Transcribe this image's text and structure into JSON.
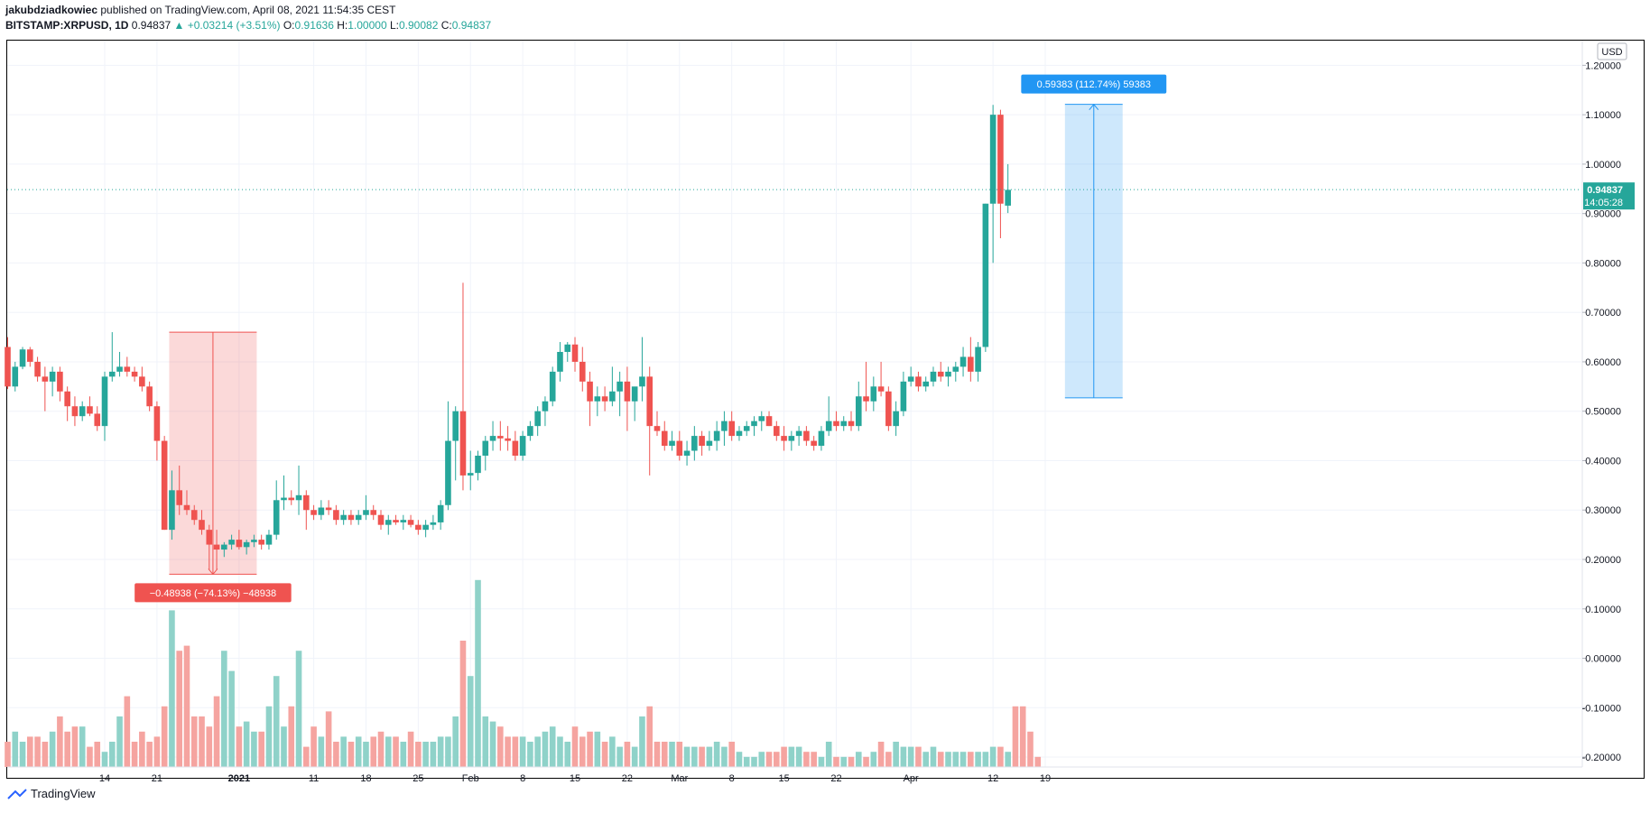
{
  "header": {
    "author": "jakubdziadkowiec",
    "published_text": "published on TradingView.com, April 08, 2021 11:54:35 CEST",
    "symbol": "BITSTAMP:XRPUSD, 1D",
    "last": "0.94837",
    "change": "▲ +0.03214 (+3.51%)",
    "o_label": "O:",
    "o": "0.91636",
    "h_label": "H:",
    "h": "1.00000",
    "l_label": "L:",
    "l": "0.90082",
    "c_label": "C:",
    "c": "0.94837"
  },
  "footer": {
    "brand": "TradingView"
  },
  "price_axis": {
    "currency": "USD",
    "ticks": [
      "1.20000",
      "1.10000",
      "1.00000",
      "0.90000",
      "0.80000",
      "0.70000",
      "0.60000",
      "0.50000",
      "0.40000",
      "0.30000",
      "0.20000",
      "0.10000",
      "0.00000",
      "-0.10000",
      "-0.20000"
    ],
    "last_price_label": "0.94837",
    "countdown_label": "14:05:28"
  },
  "chart_data": {
    "type": "candlestick",
    "symbol": "BITSTAMP:XRPUSD",
    "interval": "1D",
    "ylim": [
      -0.22,
      1.25
    ],
    "x_tick_labels": [
      {
        "label": "14",
        "index": 13
      },
      {
        "label": "21",
        "index": 20
      },
      {
        "label": "2021",
        "index": 31
      },
      {
        "label": "11",
        "index": 41
      },
      {
        "label": "18",
        "index": 48
      },
      {
        "label": "25",
        "index": 55
      },
      {
        "label": "Feb",
        "index": 62
      },
      {
        "label": "8",
        "index": 69
      },
      {
        "label": "15",
        "index": 76
      },
      {
        "label": "22",
        "index": 83
      },
      {
        "label": "Mar",
        "index": 90
      },
      {
        "label": "8",
        "index": 97
      },
      {
        "label": "15",
        "index": 104
      },
      {
        "label": "22",
        "index": 111
      },
      {
        "label": "Apr",
        "index": 121
      },
      {
        "label": "12",
        "index": 132
      },
      {
        "label": "19",
        "index": 139
      }
    ],
    "candles": [
      [
        0.63,
        0.65,
        0.545,
        0.55
      ],
      [
        0.55,
        0.6,
        0.54,
        0.59
      ],
      [
        0.59,
        0.63,
        0.585,
        0.625
      ],
      [
        0.625,
        0.63,
        0.59,
        0.6
      ],
      [
        0.6,
        0.61,
        0.56,
        0.57
      ],
      [
        0.57,
        0.59,
        0.5,
        0.56
      ],
      [
        0.56,
        0.59,
        0.53,
        0.58
      ],
      [
        0.58,
        0.59,
        0.52,
        0.54
      ],
      [
        0.54,
        0.55,
        0.48,
        0.51
      ],
      [
        0.51,
        0.53,
        0.47,
        0.49
      ],
      [
        0.49,
        0.52,
        0.48,
        0.51
      ],
      [
        0.51,
        0.53,
        0.49,
        0.495
      ],
      [
        0.495,
        0.51,
        0.46,
        0.47
      ],
      [
        0.47,
        0.58,
        0.44,
        0.57
      ],
      [
        0.57,
        0.66,
        0.56,
        0.58
      ],
      [
        0.58,
        0.62,
        0.57,
        0.59
      ],
      [
        0.59,
        0.61,
        0.57,
        0.58
      ],
      [
        0.58,
        0.59,
        0.56,
        0.57
      ],
      [
        0.57,
        0.59,
        0.54,
        0.55
      ],
      [
        0.55,
        0.56,
        0.5,
        0.51
      ],
      [
        0.51,
        0.52,
        0.4,
        0.44
      ],
      [
        0.44,
        0.45,
        0.26,
        0.26
      ],
      [
        0.26,
        0.38,
        0.24,
        0.34
      ],
      [
        0.34,
        0.39,
        0.29,
        0.31
      ],
      [
        0.31,
        0.34,
        0.29,
        0.3
      ],
      [
        0.3,
        0.31,
        0.27,
        0.28
      ],
      [
        0.28,
        0.3,
        0.25,
        0.26
      ],
      [
        0.26,
        0.27,
        0.18,
        0.23
      ],
      [
        0.23,
        0.26,
        0.18,
        0.22
      ],
      [
        0.22,
        0.235,
        0.205,
        0.23
      ],
      [
        0.23,
        0.25,
        0.22,
        0.24
      ],
      [
        0.24,
        0.26,
        0.22,
        0.225
      ],
      [
        0.225,
        0.24,
        0.21,
        0.235
      ],
      [
        0.235,
        0.25,
        0.225,
        0.24
      ],
      [
        0.24,
        0.25,
        0.22,
        0.23
      ],
      [
        0.23,
        0.26,
        0.22,
        0.25
      ],
      [
        0.25,
        0.36,
        0.24,
        0.32
      ],
      [
        0.32,
        0.37,
        0.3,
        0.325
      ],
      [
        0.325,
        0.34,
        0.31,
        0.32
      ],
      [
        0.32,
        0.39,
        0.29,
        0.33
      ],
      [
        0.33,
        0.34,
        0.26,
        0.3
      ],
      [
        0.3,
        0.31,
        0.28,
        0.29
      ],
      [
        0.29,
        0.32,
        0.28,
        0.305
      ],
      [
        0.305,
        0.32,
        0.29,
        0.3
      ],
      [
        0.3,
        0.31,
        0.27,
        0.28
      ],
      [
        0.28,
        0.3,
        0.27,
        0.29
      ],
      [
        0.29,
        0.3,
        0.27,
        0.28
      ],
      [
        0.28,
        0.3,
        0.27,
        0.29
      ],
      [
        0.29,
        0.33,
        0.28,
        0.3
      ],
      [
        0.3,
        0.31,
        0.28,
        0.29
      ],
      [
        0.29,
        0.3,
        0.26,
        0.27
      ],
      [
        0.27,
        0.29,
        0.25,
        0.28
      ],
      [
        0.28,
        0.29,
        0.27,
        0.275
      ],
      [
        0.275,
        0.29,
        0.26,
        0.28
      ],
      [
        0.28,
        0.29,
        0.265,
        0.27
      ],
      [
        0.27,
        0.28,
        0.25,
        0.26
      ],
      [
        0.26,
        0.28,
        0.245,
        0.27
      ],
      [
        0.27,
        0.29,
        0.26,
        0.275
      ],
      [
        0.275,
        0.32,
        0.26,
        0.31
      ],
      [
        0.31,
        0.52,
        0.3,
        0.44
      ],
      [
        0.44,
        0.51,
        0.36,
        0.5
      ],
      [
        0.5,
        0.76,
        0.34,
        0.37
      ],
      [
        0.37,
        0.42,
        0.34,
        0.375
      ],
      [
        0.375,
        0.42,
        0.36,
        0.41
      ],
      [
        0.41,
        0.45,
        0.38,
        0.44
      ],
      [
        0.44,
        0.48,
        0.42,
        0.45
      ],
      [
        0.45,
        0.48,
        0.42,
        0.445
      ],
      [
        0.445,
        0.47,
        0.42,
        0.44
      ],
      [
        0.44,
        0.46,
        0.4,
        0.41
      ],
      [
        0.41,
        0.46,
        0.4,
        0.45
      ],
      [
        0.45,
        0.48,
        0.44,
        0.47
      ],
      [
        0.47,
        0.51,
        0.45,
        0.5
      ],
      [
        0.5,
        0.53,
        0.47,
        0.52
      ],
      [
        0.52,
        0.59,
        0.51,
        0.58
      ],
      [
        0.58,
        0.64,
        0.56,
        0.62
      ],
      [
        0.62,
        0.64,
        0.6,
        0.635
      ],
      [
        0.635,
        0.65,
        0.58,
        0.6
      ],
      [
        0.6,
        0.63,
        0.54,
        0.56
      ],
      [
        0.56,
        0.58,
        0.47,
        0.52
      ],
      [
        0.52,
        0.55,
        0.49,
        0.53
      ],
      [
        0.53,
        0.55,
        0.5,
        0.52
      ],
      [
        0.52,
        0.59,
        0.51,
        0.54
      ],
      [
        0.54,
        0.58,
        0.49,
        0.56
      ],
      [
        0.56,
        0.59,
        0.46,
        0.52
      ],
      [
        0.52,
        0.54,
        0.48,
        0.55
      ],
      [
        0.55,
        0.65,
        0.52,
        0.57
      ],
      [
        0.57,
        0.59,
        0.37,
        0.47
      ],
      [
        0.47,
        0.5,
        0.45,
        0.46
      ],
      [
        0.46,
        0.48,
        0.42,
        0.43
      ],
      [
        0.43,
        0.46,
        0.42,
        0.44
      ],
      [
        0.44,
        0.46,
        0.4,
        0.41
      ],
      [
        0.41,
        0.44,
        0.39,
        0.42
      ],
      [
        0.42,
        0.47,
        0.4,
        0.45
      ],
      [
        0.45,
        0.46,
        0.41,
        0.43
      ],
      [
        0.43,
        0.46,
        0.42,
        0.44
      ],
      [
        0.44,
        0.48,
        0.42,
        0.46
      ],
      [
        0.46,
        0.5,
        0.43,
        0.48
      ],
      [
        0.48,
        0.5,
        0.44,
        0.45
      ],
      [
        0.45,
        0.47,
        0.44,
        0.46
      ],
      [
        0.46,
        0.48,
        0.45,
        0.47
      ],
      [
        0.47,
        0.49,
        0.45,
        0.48
      ],
      [
        0.48,
        0.5,
        0.46,
        0.49
      ],
      [
        0.49,
        0.5,
        0.47,
        0.47
      ],
      [
        0.47,
        0.48,
        0.44,
        0.45
      ],
      [
        0.45,
        0.47,
        0.42,
        0.44
      ],
      [
        0.44,
        0.46,
        0.42,
        0.45
      ],
      [
        0.45,
        0.47,
        0.43,
        0.46
      ],
      [
        0.46,
        0.47,
        0.43,
        0.44
      ],
      [
        0.44,
        0.45,
        0.42,
        0.43
      ],
      [
        0.43,
        0.47,
        0.42,
        0.46
      ],
      [
        0.46,
        0.53,
        0.45,
        0.48
      ],
      [
        0.48,
        0.5,
        0.46,
        0.47
      ],
      [
        0.47,
        0.49,
        0.46,
        0.48
      ],
      [
        0.48,
        0.5,
        0.46,
        0.47
      ],
      [
        0.47,
        0.56,
        0.46,
        0.53
      ],
      [
        0.53,
        0.6,
        0.5,
        0.52
      ],
      [
        0.52,
        0.57,
        0.5,
        0.55
      ],
      [
        0.55,
        0.6,
        0.53,
        0.54
      ],
      [
        0.54,
        0.55,
        0.46,
        0.47
      ],
      [
        0.47,
        0.52,
        0.45,
        0.5
      ],
      [
        0.5,
        0.58,
        0.49,
        0.56
      ],
      [
        0.56,
        0.59,
        0.55,
        0.57
      ],
      [
        0.57,
        0.58,
        0.54,
        0.55
      ],
      [
        0.55,
        0.57,
        0.54,
        0.56
      ],
      [
        0.56,
        0.59,
        0.55,
        0.58
      ],
      [
        0.58,
        0.6,
        0.56,
        0.57
      ],
      [
        0.57,
        0.59,
        0.55,
        0.58
      ],
      [
        0.58,
        0.6,
        0.56,
        0.59
      ],
      [
        0.59,
        0.63,
        0.57,
        0.61
      ],
      [
        0.61,
        0.65,
        0.56,
        0.58
      ],
      [
        0.58,
        0.64,
        0.56,
        0.63
      ],
      [
        0.63,
        0.92,
        0.62,
        0.92
      ],
      [
        0.92,
        1.12,
        0.8,
        1.1
      ],
      [
        1.1,
        1.11,
        0.85,
        0.92
      ],
      [
        0.916,
        1.0,
        0.901,
        0.948
      ]
    ],
    "volumes": [
      0.05,
      0.07,
      0.05,
      0.06,
      0.06,
      0.05,
      0.07,
      0.1,
      0.07,
      0.08,
      0.08,
      0.04,
      0.05,
      0.03,
      0.05,
      0.1,
      0.14,
      0.05,
      0.07,
      0.05,
      0.06,
      0.12,
      0.31,
      0.23,
      0.24,
      0.1,
      0.1,
      0.08,
      0.14,
      0.23,
      0.19,
      0.08,
      0.09,
      0.07,
      0.07,
      0.12,
      0.18,
      0.08,
      0.12,
      0.23,
      0.04,
      0.08,
      0.06,
      0.11,
      0.05,
      0.06,
      0.05,
      0.06,
      0.05,
      0.06,
      0.07,
      0.06,
      0.06,
      0.05,
      0.07,
      0.05,
      0.05,
      0.05,
      0.06,
      0.06,
      0.1,
      0.25,
      0.18,
      0.37,
      0.1,
      0.09,
      0.08,
      0.06,
      0.06,
      0.06,
      0.05,
      0.06,
      0.07,
      0.08,
      0.06,
      0.05,
      0.08,
      0.06,
      0.07,
      0.07,
      0.05,
      0.06,
      0.04,
      0.05,
      0.04,
      0.1,
      0.12,
      0.05,
      0.05,
      0.05,
      0.05,
      0.04,
      0.04,
      0.04,
      0.04,
      0.05,
      0.04,
      0.05,
      0.03,
      0.02,
      0.02,
      0.03,
      0.03,
      0.03,
      0.04,
      0.04,
      0.04,
      0.03,
      0.03,
      0.02,
      0.05,
      0.02,
      0.02,
      0.02,
      0.03,
      0.02,
      0.03,
      0.05,
      0.03,
      0.05,
      0.04,
      0.04,
      0.04,
      0.03,
      0.04,
      0.03,
      0.03,
      0.03,
      0.03,
      0.03,
      0.03,
      0.03,
      0.04,
      0.04,
      0.03,
      0.12,
      0.12,
      0.07,
      0.02
    ],
    "last_price": 0.94837,
    "measurements": [
      {
        "label": "−0.48938 (−74.13%) −48938",
        "from_index": 22,
        "to_index": 33,
        "from_price": 0.66,
        "to_price": 0.17,
        "direction": "down",
        "color": "#ef5350"
      },
      {
        "label": "0.59383 (112.74%) 59383",
        "from_index": 142,
        "to_index": 149,
        "from_price": 0.527,
        "to_price": 1.121,
        "direction": "up",
        "color": "#2196f3"
      }
    ],
    "colors": {
      "up": "#26a69a",
      "down": "#ef5350",
      "up_volume": "#8fd2c9",
      "down_volume": "#f5a4a0"
    }
  }
}
